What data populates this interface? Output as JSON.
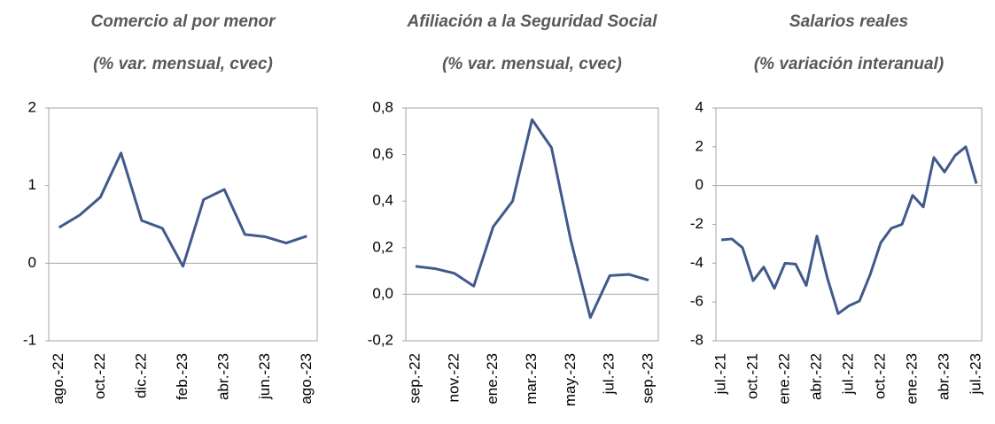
{
  "chart_data": [
    {
      "type": "line",
      "title": "Comercio al por menor",
      "subtitle": "(% var. mensual, cvec)",
      "categories": [
        "ago.-22",
        null,
        "oct.-22",
        null,
        "dic.-22",
        null,
        "feb.-23",
        null,
        "abr.-23",
        null,
        "jun.-23",
        null,
        "ago.-23"
      ],
      "series": [
        {
          "name": "Comercio al por menor",
          "color": "#41598b",
          "values": [
            0.46,
            0.62,
            0.85,
            1.42,
            0.55,
            0.45,
            -0.04,
            0.82,
            0.95,
            0.37,
            0.34,
            0.26,
            0.35
          ]
        }
      ],
      "ylim": [
        -1,
        2
      ],
      "yticks": [
        -1,
        0,
        1,
        2
      ]
    },
    {
      "type": "line",
      "title": "Afiliación a la Seguridad Social",
      "subtitle": "(% var. mensual, cvec)",
      "categories": [
        "sep.-22",
        null,
        "nov.-22",
        null,
        "ene.-23",
        null,
        "mar.-23",
        null,
        "may.-23",
        null,
        "jul.-23",
        null,
        "sep.-23"
      ],
      "series": [
        {
          "name": "Afiliación a la Seguridad Social",
          "color": "#41598b",
          "values": [
            0.12,
            0.11,
            0.09,
            0.035,
            0.29,
            0.4,
            0.75,
            0.63,
            0.23,
            -0.1,
            0.08,
            0.085,
            0.06
          ]
        }
      ],
      "ylim": [
        -0.2,
        0.8
      ],
      "yticks": [
        {
          "value": -0.2,
          "label": "-0,2"
        },
        {
          "value": 0,
          "label": "0,0"
        },
        {
          "value": 0.2,
          "label": "0,2"
        },
        {
          "value": 0.4,
          "label": "0,4"
        },
        {
          "value": 0.6,
          "label": "0,6"
        },
        {
          "value": 0.8,
          "label": "0,8"
        }
      ]
    },
    {
      "type": "line",
      "title": "Salarios reales",
      "subtitle": "(% variación interanual)",
      "categories": [
        "jul.-21",
        null,
        null,
        "oct.-21",
        null,
        null,
        "ene.-22",
        null,
        null,
        "abr.-22",
        null,
        null,
        "jul.-22",
        null,
        null,
        "oct.-22",
        null,
        null,
        "ene.-23",
        null,
        null,
        "abr.-23",
        null,
        null,
        "jul.-23"
      ],
      "series": [
        {
          "name": "Salarios reales",
          "color": "#41598b",
          "values": [
            -2.8,
            -2.75,
            -3.2,
            -4.9,
            -4.2,
            -5.3,
            -4.0,
            -4.05,
            -5.15,
            -2.6,
            -4.8,
            -6.6,
            -6.2,
            -5.95,
            -4.6,
            -2.95,
            -2.2,
            -2.0,
            -0.5,
            -1.1,
            1.45,
            0.7,
            1.55,
            2.0,
            0.1
          ]
        }
      ],
      "ylim": [
        -8,
        4
      ],
      "yticks": [
        -8,
        -6,
        -4,
        -2,
        0,
        2,
        4
      ]
    }
  ]
}
